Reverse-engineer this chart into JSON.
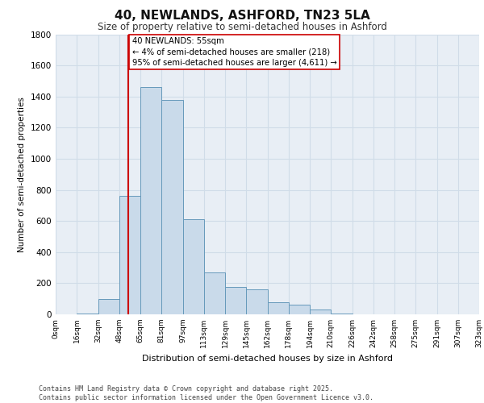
{
  "title": "40, NEWLANDS, ASHFORD, TN23 5LA",
  "subtitle": "Size of property relative to semi-detached houses in Ashford",
  "xlabel": "Distribution of semi-detached houses by size in Ashford",
  "ylabel": "Number of semi-detached properties",
  "bin_labels": [
    "0sqm",
    "16sqm",
    "32sqm",
    "48sqm",
    "65sqm",
    "81sqm",
    "97sqm",
    "113sqm",
    "129sqm",
    "145sqm",
    "162sqm",
    "178sqm",
    "194sqm",
    "210sqm",
    "226sqm",
    "242sqm",
    "258sqm",
    "275sqm",
    "291sqm",
    "307sqm",
    "323sqm"
  ],
  "n_bins": 20,
  "bar_heights": [
    0,
    5,
    100,
    760,
    1460,
    1380,
    610,
    270,
    175,
    160,
    80,
    60,
    30,
    5,
    0,
    0,
    0,
    0,
    0,
    0
  ],
  "bar_color": "#c9daea",
  "bar_edge_color": "#6699bb",
  "grid_color": "#d0dce8",
  "background_color": "#e8eef5",
  "vline_x_bin": 3.44,
  "vline_color": "#cc0000",
  "annotation_text": "40 NEWLANDS: 55sqm\n← 4% of semi-detached houses are smaller (218)\n95% of semi-detached houses are larger (4,611) →",
  "annotation_box_color": "#ffffff",
  "annotation_box_edge": "#cc0000",
  "ylim": [
    0,
    1800
  ],
  "yticks": [
    0,
    200,
    400,
    600,
    800,
    1000,
    1200,
    1400,
    1600,
    1800
  ],
  "footer_line1": "Contains HM Land Registry data © Crown copyright and database right 2025.",
  "footer_line2": "Contains public sector information licensed under the Open Government Licence v3.0."
}
